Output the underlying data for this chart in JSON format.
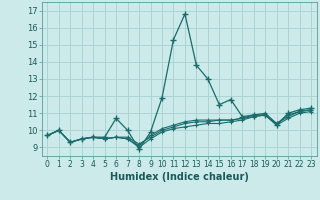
{
  "xlabel": "Humidex (Indice chaleur)",
  "background_color": "#cceaea",
  "grid_color": "#aad4d4",
  "line_color": "#1a6b6b",
  "xlim": [
    -0.5,
    23.5
  ],
  "ylim": [
    8.5,
    17.5
  ],
  "xticks": [
    0,
    1,
    2,
    3,
    4,
    5,
    6,
    7,
    8,
    9,
    10,
    11,
    12,
    13,
    14,
    15,
    16,
    17,
    18,
    19,
    20,
    21,
    22,
    23
  ],
  "yticks": [
    9,
    10,
    11,
    12,
    13,
    14,
    15,
    16,
    17
  ],
  "series": [
    [
      9.7,
      10.0,
      9.3,
      9.5,
      9.6,
      9.6,
      10.7,
      10.0,
      8.9,
      9.9,
      11.9,
      15.3,
      16.8,
      13.8,
      13.0,
      11.5,
      11.8,
      10.8,
      10.9,
      10.9,
      10.3,
      11.0,
      11.2,
      11.3
    ],
    [
      9.7,
      10.0,
      9.3,
      9.5,
      9.6,
      9.5,
      9.6,
      9.5,
      9.0,
      9.5,
      9.9,
      10.1,
      10.2,
      10.3,
      10.4,
      10.4,
      10.5,
      10.6,
      10.8,
      10.9,
      10.3,
      10.7,
      11.0,
      11.1
    ],
    [
      9.7,
      10.0,
      9.3,
      9.5,
      9.6,
      9.5,
      9.6,
      9.6,
      9.2,
      9.6,
      10.0,
      10.2,
      10.4,
      10.5,
      10.5,
      10.6,
      10.6,
      10.7,
      10.9,
      11.0,
      10.4,
      10.8,
      11.1,
      11.2
    ],
    [
      9.7,
      10.0,
      9.3,
      9.5,
      9.6,
      9.5,
      9.6,
      9.5,
      9.1,
      9.7,
      10.1,
      10.3,
      10.5,
      10.6,
      10.6,
      10.6,
      10.6,
      10.7,
      10.8,
      10.9,
      10.4,
      10.9,
      11.1,
      11.2
    ]
  ]
}
